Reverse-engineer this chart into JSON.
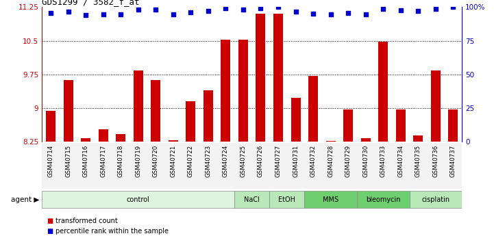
{
  "title": "GDS1299 / 3582_f_at",
  "samples": [
    "GSM40714",
    "GSM40715",
    "GSM40716",
    "GSM40717",
    "GSM40718",
    "GSM40719",
    "GSM40720",
    "GSM40721",
    "GSM40722",
    "GSM40723",
    "GSM40724",
    "GSM40725",
    "GSM40726",
    "GSM40727",
    "GSM40731",
    "GSM40732",
    "GSM40728",
    "GSM40729",
    "GSM40730",
    "GSM40733",
    "GSM40734",
    "GSM40735",
    "GSM40736",
    "GSM40737"
  ],
  "bar_values": [
    8.93,
    9.63,
    8.33,
    8.52,
    8.42,
    9.83,
    9.63,
    8.28,
    9.15,
    9.4,
    10.53,
    10.53,
    11.1,
    11.1,
    9.22,
    9.72,
    8.27,
    8.97,
    8.33,
    10.48,
    8.97,
    8.38,
    9.83,
    8.97
  ],
  "dot_values": [
    11.12,
    11.15,
    11.07,
    11.09,
    11.08,
    11.2,
    11.19,
    11.08,
    11.13,
    11.16,
    11.22,
    11.2,
    11.23,
    11.25,
    11.15,
    11.11,
    11.08,
    11.12,
    11.09,
    11.21,
    11.18,
    11.16,
    11.21,
    11.25
  ],
  "group_starts": [
    0,
    11,
    13,
    15,
    18,
    21
  ],
  "group_counts": [
    11,
    2,
    2,
    3,
    3,
    3
  ],
  "group_labels": [
    "control",
    "NaCl",
    "EtOH",
    "MMS",
    "bleomycin",
    "cisplatin"
  ],
  "group_colors": [
    "#e0f5e0",
    "#b8e8b8",
    "#b8e8b8",
    "#6ecf6e",
    "#6ecf6e",
    "#b8e8b8"
  ],
  "ylim_left": [
    8.25,
    11.25
  ],
  "yticks_left": [
    8.25,
    9.0,
    9.75,
    10.5,
    11.25
  ],
  "ytick_labels_left": [
    "8.25",
    "9",
    "9.75",
    "10.5",
    "11.25"
  ],
  "yticks_right_pct": [
    0,
    25,
    50,
    75,
    100
  ],
  "ytick_labels_right": [
    "0",
    "25",
    "50",
    "75",
    "100%"
  ],
  "bar_color": "#cc0000",
  "dot_color": "#0000cc",
  "bar_width": 0.55,
  "hgrid_vals": [
    9.0,
    9.75,
    10.5
  ],
  "legend_items": [
    {
      "label": "transformed count",
      "color": "#cc0000"
    },
    {
      "label": "percentile rank within the sample",
      "color": "#0000cc"
    }
  ],
  "agent_label": "agent"
}
